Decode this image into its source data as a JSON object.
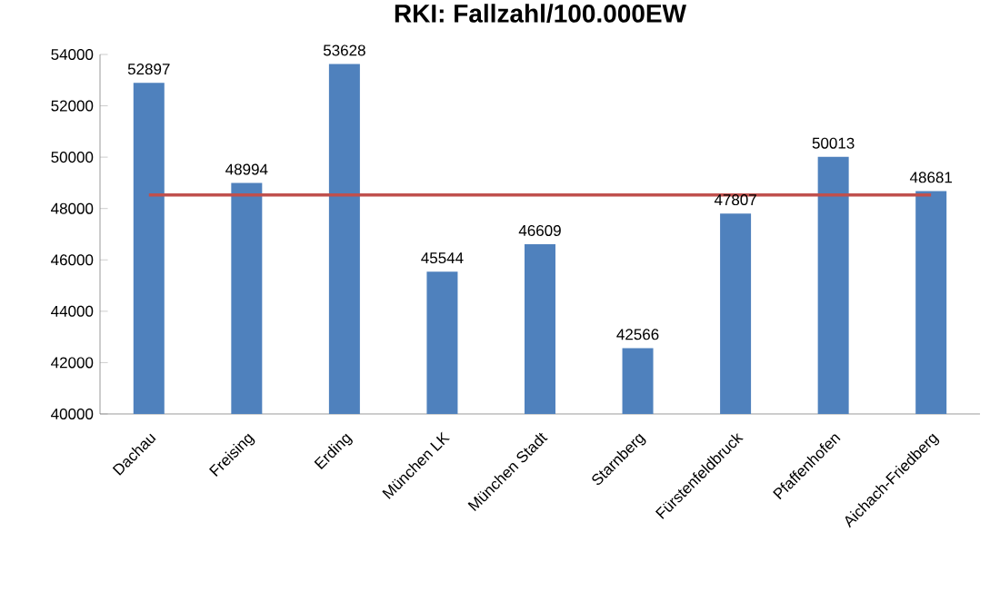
{
  "chart_data": {
    "type": "bar",
    "title": "RKI: Fallzahl/100.000EW",
    "categories": [
      "Dachau",
      "Freising",
      "Erding",
      "München LK",
      "München Stadt",
      "Starnberg",
      "Fürstenfeldbruck",
      "Pfaffenhofen",
      "Aichach-Friedberg"
    ],
    "values": [
      52897,
      48994,
      53628,
      45544,
      46609,
      42566,
      47807,
      50013,
      48681
    ],
    "color": "#4f81bd",
    "ylim": [
      40000,
      54000
    ],
    "yticks": [
      40000,
      42000,
      44000,
      46000,
      48000,
      50000,
      52000,
      54000
    ],
    "data_labels": true,
    "ref_lines": [
      {
        "axis": "y",
        "value": 48527,
        "color": "#c0504d"
      }
    ]
  }
}
